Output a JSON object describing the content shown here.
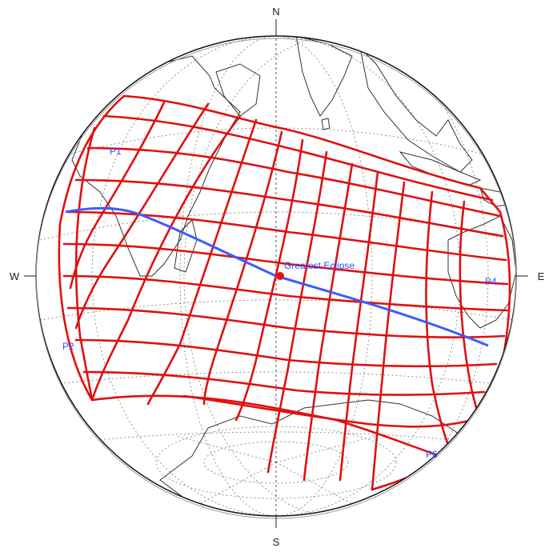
{
  "compass": {
    "north": "N",
    "south": "S",
    "west": "W",
    "east": "E"
  },
  "labels": {
    "greatest_eclipse": "Greatest Eclipse",
    "p1": "P1",
    "p2": "P2",
    "p4": "P4",
    "p6": "P6"
  },
  "colors": {
    "globe_outline": "#111111",
    "graticule": "#666666",
    "coastline": "#333333",
    "contour": "#e01010",
    "central_path": "#3a5cff",
    "label": "#2a52ff"
  }
}
